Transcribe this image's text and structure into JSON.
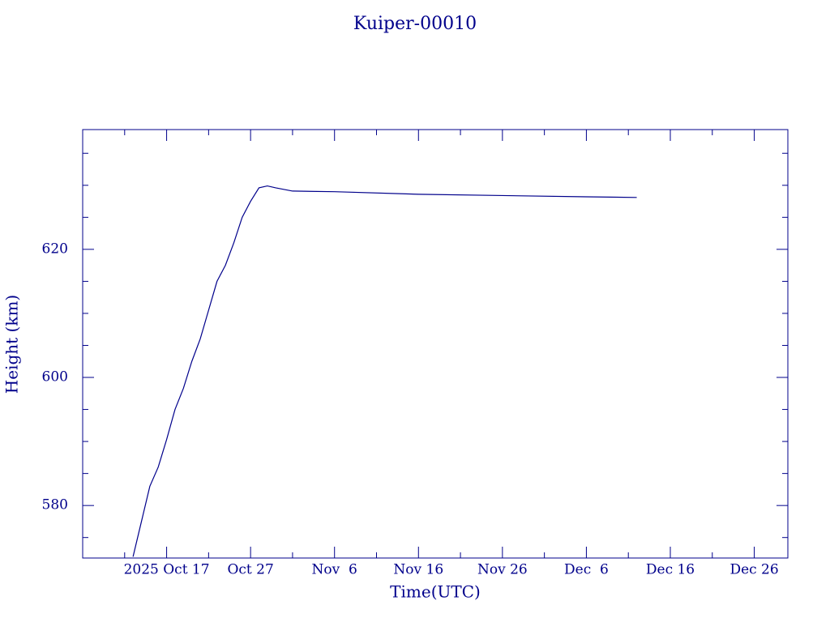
{
  "chart_data": {
    "type": "line",
    "title": "Kuiper-00010",
    "xlabel": "Time(UTC)",
    "ylabel": "Height (km)",
    "color": "#00008b",
    "x": [
      "2025-10-13",
      "2025-10-14",
      "2025-10-15",
      "2025-10-16",
      "2025-10-17",
      "2025-10-18",
      "2025-10-19",
      "2025-10-20",
      "2025-10-21",
      "2025-10-22",
      "2025-10-23",
      "2025-10-24",
      "2025-10-25",
      "2025-10-26",
      "2025-10-27",
      "2025-10-28",
      "2025-10-29",
      "2025-10-30",
      "2025-11-01",
      "2025-11-06",
      "2025-11-16",
      "2025-11-26",
      "2025-12-06",
      "2025-12-12"
    ],
    "series": [
      {
        "values": [
          572,
          577.5,
          583,
          586,
          590.3,
          595,
          598.3,
          602.5,
          606,
          610.5,
          615,
          617.5,
          621,
          625,
          627.5,
          629.6,
          629.9,
          629.6,
          629.1,
          629.0,
          628.6,
          628.4,
          628.2,
          628.1
        ]
      }
    ],
    "xlim": [
      "2025-10-07",
      "2025-12-30"
    ],
    "xticks": [
      {
        "value": "2025-10-17",
        "label": "2025 Oct 17"
      },
      {
        "value": "2025-10-27",
        "label": "Oct 27"
      },
      {
        "value": "2025-11-06",
        "label": "Nov  6"
      },
      {
        "value": "2025-11-16",
        "label": "Nov 16"
      },
      {
        "value": "2025-11-26",
        "label": "Nov 26"
      },
      {
        "value": "2025-12-06",
        "label": "Dec  6"
      },
      {
        "value": "2025-12-16",
        "label": "Dec 16"
      },
      {
        "value": "2025-12-26",
        "label": "Dec 26"
      }
    ],
    "x_minor_ticks": [
      "2025-10-12",
      "2025-10-22",
      "2025-11-01",
      "2025-11-11",
      "2025-11-21",
      "2025-12-01",
      "2025-12-11",
      "2025-12-21"
    ],
    "ylim": [
      571.8,
      638.7
    ],
    "yticks": [
      580,
      600,
      620
    ],
    "y_minor_ticks": [
      575,
      585,
      590,
      595,
      605,
      610,
      615,
      625,
      630,
      635
    ]
  }
}
